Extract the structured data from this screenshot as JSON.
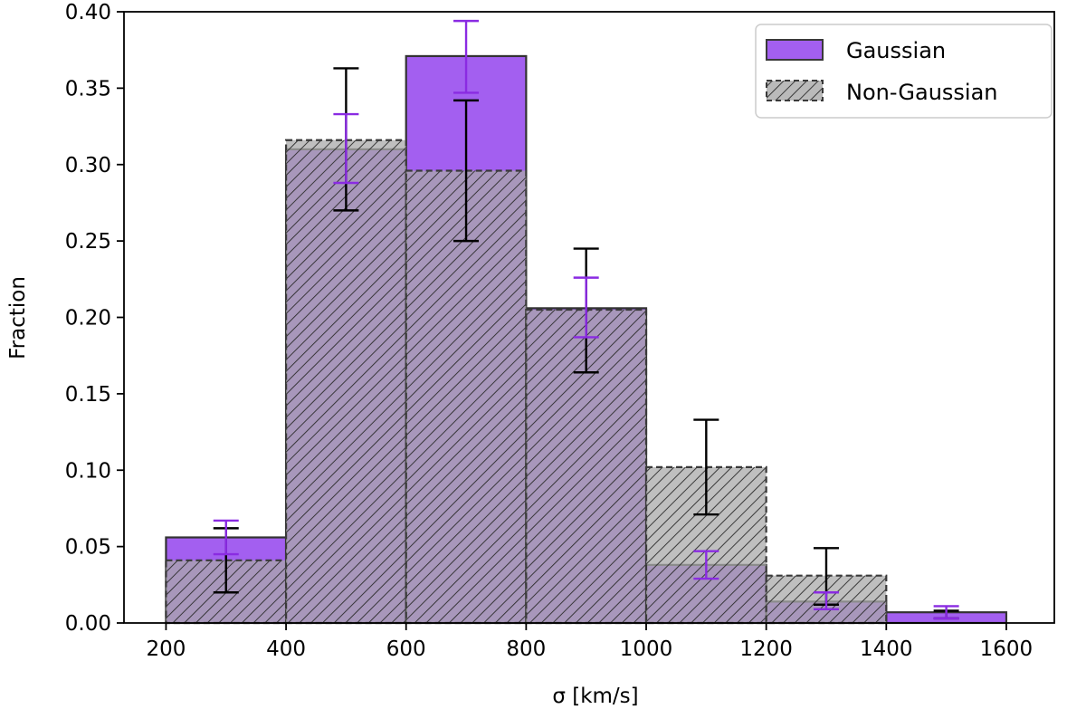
{
  "chart_data": {
    "type": "bar",
    "xlabel": "σ [km/s]",
    "ylabel": "Fraction",
    "xlim": [
      130,
      1680
    ],
    "ylim": [
      0,
      0.4
    ],
    "xticks": [
      "200",
      "400",
      "600",
      "800",
      "1000",
      "1200",
      "1400",
      "1600"
    ],
    "yticks": [
      "0.00",
      "0.05",
      "0.10",
      "0.15",
      "0.20",
      "0.25",
      "0.30",
      "0.35",
      "0.40"
    ],
    "bin_edges": [
      200,
      400,
      600,
      800,
      1000,
      1200,
      1400,
      1600
    ],
    "bin_centers": [
      300,
      500,
      700,
      900,
      1100,
      1300,
      1500
    ],
    "grid": false,
    "legend_position": "top-right",
    "series": [
      {
        "name": "Gaussian",
        "style": "solid",
        "color": "#a35ff0",
        "errbar_color": "#8a2be2",
        "values": [
          0.056,
          0.31,
          0.371,
          0.206,
          0.038,
          0.014,
          0.007
        ],
        "err_low": [
          0.045,
          0.288,
          0.347,
          0.187,
          0.029,
          0.009,
          0.003
        ],
        "err_high": [
          0.067,
          0.333,
          0.394,
          0.226,
          0.047,
          0.02,
          0.011
        ]
      },
      {
        "name": "Non-Gaussian",
        "style": "hatched-dashed",
        "color": "#a9a9a9",
        "errbar_color": "#000000",
        "values": [
          0.041,
          0.316,
          0.296,
          0.205,
          0.102,
          0.031,
          0.0
        ],
        "err_low": [
          0.02,
          0.27,
          0.25,
          0.164,
          0.071,
          0.012,
          0.003
        ],
        "err_high": [
          0.062,
          0.363,
          0.342,
          0.245,
          0.133,
          0.049,
          0.008
        ]
      }
    ]
  }
}
